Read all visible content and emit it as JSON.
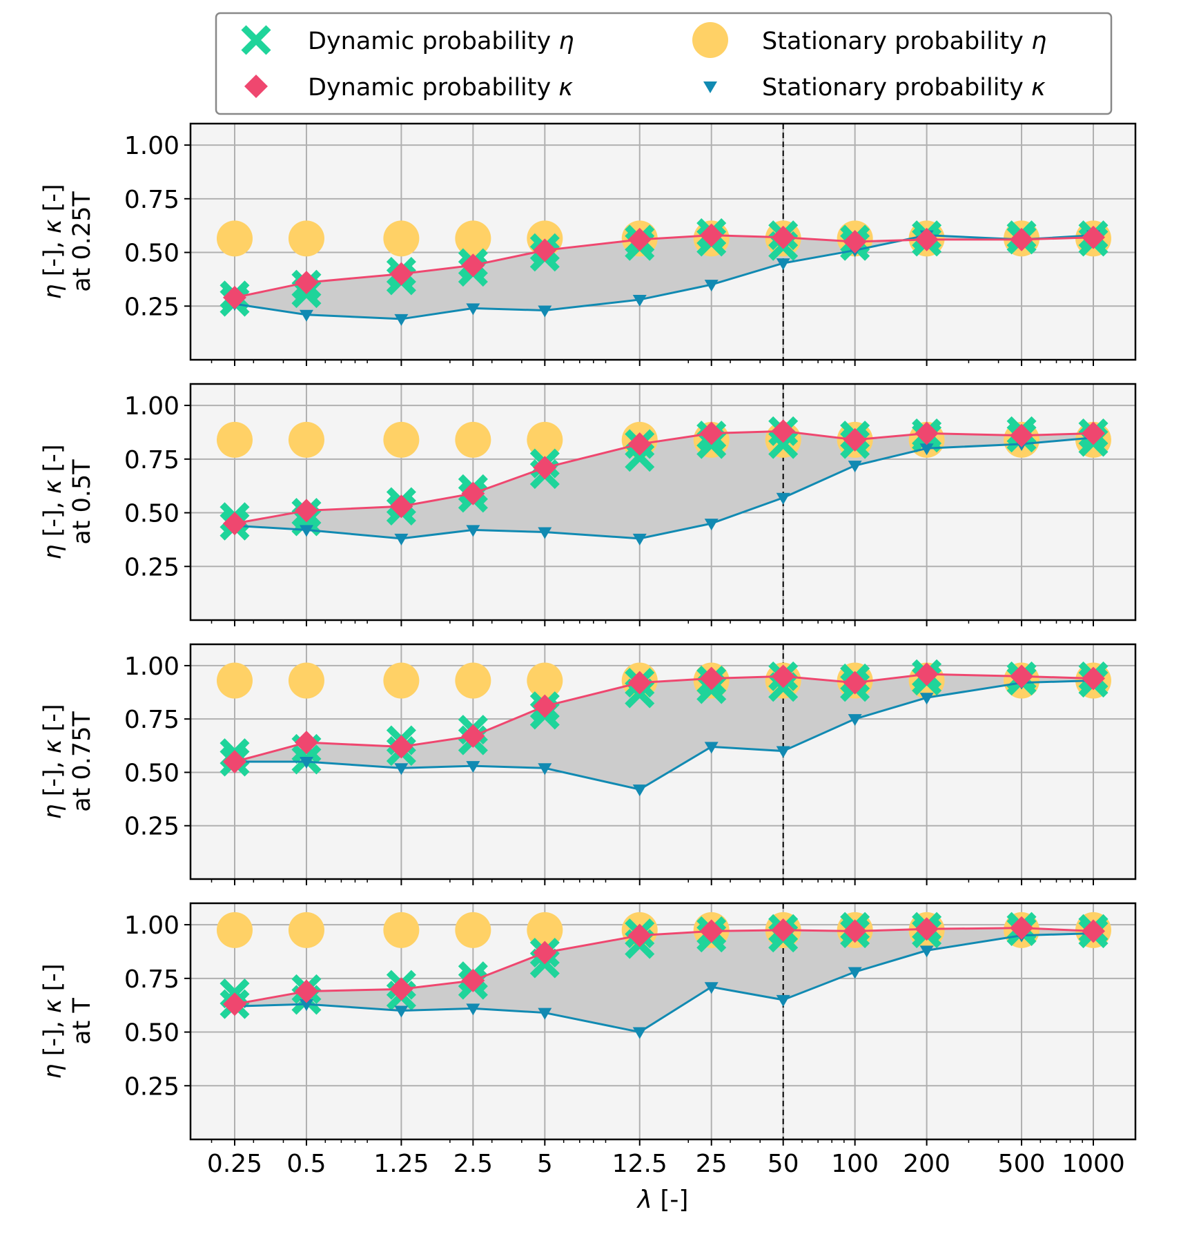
{
  "chart_data": {
    "type": "line",
    "x_categories": [
      "0.25",
      "0.5",
      "1.25",
      "2.5",
      "5",
      "12.5",
      "25",
      "50",
      "100",
      "200",
      "500",
      "1000"
    ],
    "x": [
      0.25,
      0.5,
      1.25,
      2.5,
      5,
      12.5,
      25,
      50,
      100,
      200,
      500,
      1000
    ],
    "x_scale": "log",
    "xlabel_symbol": "λ",
    "xlabel_unit": " [-]",
    "ylim": [
      0,
      1.1
    ],
    "yticks": [
      "0.25",
      "0.50",
      "0.75",
      "1.00"
    ],
    "yticks_values": [
      0.25,
      0.5,
      0.75,
      1.0
    ],
    "vline_x": 50,
    "grid": true,
    "legend_position": "top",
    "legend": [
      {
        "key": "dyn_eta",
        "prefix": "Dynamic probability ",
        "symbol": "η"
      },
      {
        "key": "stat_eta",
        "prefix": "Stationary probability ",
        "symbol": "η"
      },
      {
        "key": "dyn_kappa",
        "prefix": "Dynamic probability ",
        "symbol": "κ"
      },
      {
        "key": "stat_kappa",
        "prefix": "Stationary probability ",
        "symbol": "κ"
      }
    ],
    "colors": {
      "dyn_eta": "#1fd49a",
      "stat_eta": "#ffd166",
      "dyn_kappa": "#ef476f",
      "stat_kappa": "#118ab2",
      "fill": "#cccccc",
      "axes_bg": "#f4f4f4",
      "grid": "#b0b0b0"
    },
    "panels": [
      {
        "ylabel_line1": "η [-], κ [-]",
        "ylabel_line2": "at 0.25T",
        "dyn_eta": [
          [
            0.27,
            0.3
          ],
          [
            0.31,
            0.35
          ],
          [
            0.37,
            0.41
          ],
          [
            0.41,
            0.45
          ],
          [
            0.48,
            0.52
          ],
          [
            0.53,
            0.56
          ],
          [
            0.55,
            0.59
          ],
          [
            0.53,
            0.58
          ],
          [
            0.53,
            0.56
          ],
          [
            0.55,
            0.58
          ],
          [
            0.56,
            0.58
          ],
          [
            0.55,
            0.58
          ]
        ],
        "stat_eta": [
          0.565,
          0.565,
          0.565,
          0.565,
          0.565,
          0.565,
          0.565,
          0.565,
          0.565,
          0.565,
          0.565,
          0.565
        ],
        "dyn_kappa": [
          0.29,
          0.36,
          0.4,
          0.44,
          0.51,
          0.56,
          0.58,
          0.57,
          0.55,
          0.56,
          0.56,
          0.57
        ],
        "stat_kappa": [
          0.26,
          0.21,
          0.19,
          0.24,
          0.23,
          0.28,
          0.35,
          0.45,
          0.51,
          0.58,
          0.56,
          0.58
        ]
      },
      {
        "ylabel_line1": "η [-], κ [-]",
        "ylabel_line2": "at 0.5T",
        "dyn_eta": [
          [
            0.44,
            0.48
          ],
          [
            0.46,
            0.5
          ],
          [
            0.51,
            0.55
          ],
          [
            0.57,
            0.61
          ],
          [
            0.68,
            0.73
          ],
          [
            0.76,
            0.82
          ],
          [
            0.82,
            0.86
          ],
          [
            0.82,
            0.88
          ],
          [
            0.82,
            0.86
          ],
          [
            0.85,
            0.87
          ],
          [
            0.85,
            0.88
          ],
          [
            0.83,
            0.87
          ]
        ],
        "stat_eta": [
          0.84,
          0.84,
          0.84,
          0.84,
          0.84,
          0.84,
          0.84,
          0.84,
          0.84,
          0.84,
          0.84,
          0.84
        ],
        "dyn_kappa": [
          0.45,
          0.51,
          0.53,
          0.59,
          0.71,
          0.82,
          0.87,
          0.88,
          0.84,
          0.87,
          0.86,
          0.87
        ],
        "stat_kappa": [
          0.44,
          0.42,
          0.38,
          0.42,
          0.41,
          0.38,
          0.45,
          0.57,
          0.72,
          0.8,
          0.82,
          0.85
        ]
      },
      {
        "ylabel_line1": "η [-], κ [-]",
        "ylabel_line2": "at 0.75T",
        "dyn_eta": [
          [
            0.55,
            0.59
          ],
          [
            0.56,
            0.61
          ],
          [
            0.6,
            0.65
          ],
          [
            0.65,
            0.7
          ],
          [
            0.77,
            0.81
          ],
          [
            0.87,
            0.92
          ],
          [
            0.89,
            0.93
          ],
          [
            0.9,
            0.95
          ],
          [
            0.9,
            0.94
          ],
          [
            0.93,
            0.96
          ],
          [
            0.93,
            0.95
          ],
          [
            0.92,
            0.95
          ]
        ],
        "stat_eta": [
          0.93,
          0.93,
          0.93,
          0.93,
          0.93,
          0.93,
          0.93,
          0.93,
          0.93,
          0.93,
          0.93,
          0.93
        ],
        "dyn_kappa": [
          0.55,
          0.64,
          0.62,
          0.67,
          0.81,
          0.92,
          0.94,
          0.95,
          0.92,
          0.96,
          0.95,
          0.94
        ],
        "stat_kappa": [
          0.55,
          0.55,
          0.52,
          0.53,
          0.52,
          0.42,
          0.62,
          0.6,
          0.75,
          0.85,
          0.92,
          0.93
        ]
      },
      {
        "ylabel_line1": "η [-], κ [-]",
        "ylabel_line2": "at T",
        "dyn_eta": [
          [
            0.63,
            0.68
          ],
          [
            0.65,
            0.7
          ],
          [
            0.67,
            0.72
          ],
          [
            0.72,
            0.76
          ],
          [
            0.82,
            0.87
          ],
          [
            0.91,
            0.96
          ],
          [
            0.94,
            0.97
          ],
          [
            0.94,
            0.98
          ],
          [
            0.96,
            0.99
          ],
          [
            0.96,
            0.99
          ],
          [
            0.97,
            0.99
          ],
          [
            0.96,
            0.98
          ]
        ],
        "stat_eta": [
          0.975,
          0.975,
          0.975,
          0.975,
          0.975,
          0.975,
          0.975,
          0.975,
          0.975,
          0.975,
          0.975,
          0.975
        ],
        "dyn_kappa": [
          0.63,
          0.69,
          0.7,
          0.74,
          0.87,
          0.95,
          0.97,
          0.975,
          0.97,
          0.98,
          0.985,
          0.97
        ],
        "stat_kappa": [
          0.62,
          0.63,
          0.6,
          0.61,
          0.59,
          0.5,
          0.71,
          0.65,
          0.78,
          0.88,
          0.95,
          0.96
        ]
      }
    ]
  }
}
